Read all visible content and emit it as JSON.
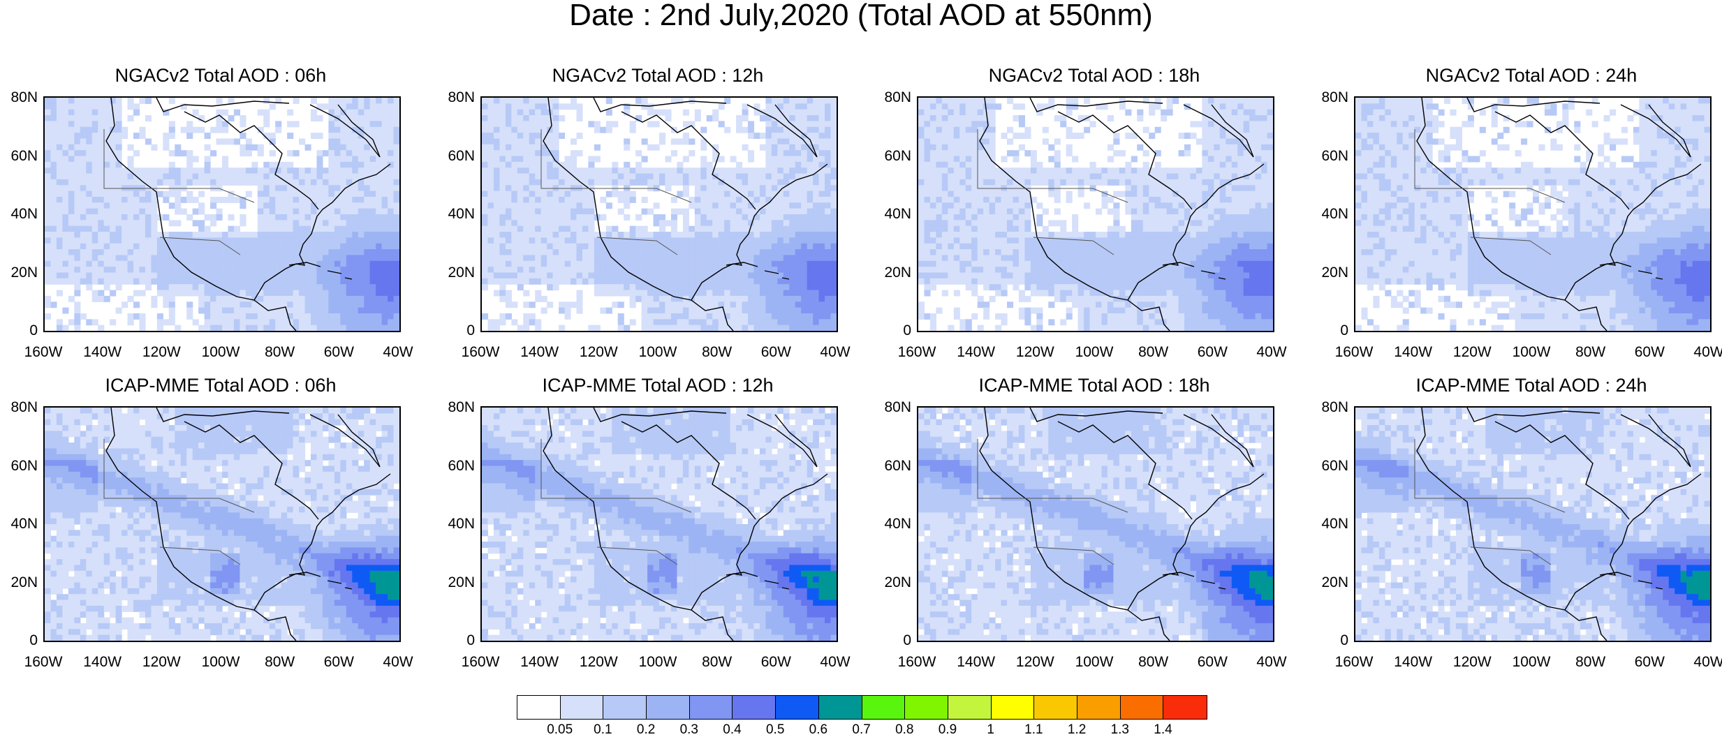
{
  "title": "Date : 2nd July,2020 (Total AOD at 550nm)",
  "panels": [
    {
      "title": "NGACv2 Total AOD : 06h",
      "model": "ngac",
      "hour": 6
    },
    {
      "title": "NGACv2 Total AOD : 12h",
      "model": "ngac",
      "hour": 12
    },
    {
      "title": "NGACv2 Total AOD : 18h",
      "model": "ngac",
      "hour": 18
    },
    {
      "title": "NGACv2 Total AOD : 24h",
      "model": "ngac",
      "hour": 24
    },
    {
      "title": "ICAP-MME Total AOD : 06h",
      "model": "icap",
      "hour": 6
    },
    {
      "title": "ICAP-MME Total AOD : 12h",
      "model": "icap",
      "hour": 12
    },
    {
      "title": "ICAP-MME Total AOD : 18h",
      "model": "icap",
      "hour": 18
    },
    {
      "title": "ICAP-MME Total AOD : 24h",
      "model": "icap",
      "hour": 24
    }
  ],
  "axes": {
    "lat_ticks": [
      "80N",
      "60N",
      "40N",
      "20N",
      "0"
    ],
    "lon_ticks": [
      "160W",
      "140W",
      "120W",
      "100W",
      "80W",
      "60W",
      "40W"
    ],
    "lat_range": [
      0,
      80
    ],
    "lon_range": [
      -160,
      -40
    ]
  },
  "colorbar": {
    "colors": [
      "#ffffff",
      "#d6e0fa",
      "#b7c9f6",
      "#9cb4f4",
      "#8096f2",
      "#6676ef",
      "#0f5af5",
      "#009696",
      "#5af50f",
      "#80f500",
      "#c3f53c",
      "#ffff00",
      "#fac800",
      "#fa9e00",
      "#fa6e00",
      "#fa2d0a"
    ],
    "labels": [
      "0.05",
      "0.1",
      "0.2",
      "0.3",
      "0.4",
      "0.5",
      "0.6",
      "0.7",
      "0.8",
      "0.9",
      "1",
      "1.1",
      "1.2",
      "1.3",
      "1.4"
    ]
  }
}
